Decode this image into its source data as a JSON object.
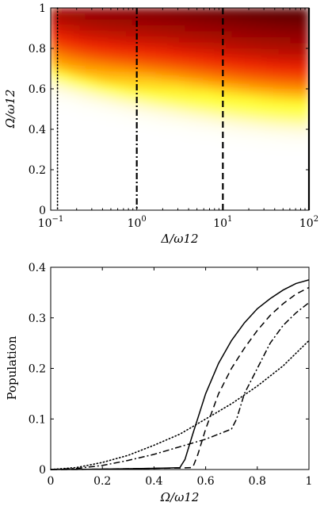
{
  "chart_data": [
    {
      "type": "heatmap",
      "xlabel": "Δ/ω12",
      "ylabel": "Ω/ω12",
      "x_scale": "log",
      "xlim": [
        0.1,
        100
      ],
      "ylim": [
        0,
        1
      ],
      "x_ticks": [
        {
          "value": 0.1,
          "base": "10",
          "exp": "−1"
        },
        {
          "value": 1,
          "base": "10",
          "exp": "0"
        },
        {
          "value": 10,
          "base": "10",
          "exp": "1"
        },
        {
          "value": 100,
          "base": "10",
          "exp": "2"
        }
      ],
      "y_ticks": [
        "0",
        "0.2",
        "0.4",
        "0.6",
        "0.8",
        "1"
      ],
      "colormap": [
        "#ffffff",
        "#fffbd0",
        "#ffff33",
        "#ff9900",
        "#ee2200",
        "#8a0000",
        "#000000"
      ],
      "vertical_markers": [
        {
          "x": 0.12,
          "style": "dotted"
        },
        {
          "x": 1.0,
          "style": "dashdot"
        },
        {
          "x": 10.0,
          "style": "dashed"
        },
        {
          "x": 100.0,
          "style": "solid"
        }
      ]
    },
    {
      "type": "line",
      "xlabel": "Ω/ω12",
      "ylabel": "Population",
      "xlim": [
        0,
        1
      ],
      "ylim": [
        0,
        0.4
      ],
      "x_ticks": [
        "0",
        "0.2",
        "0.4",
        "0.6",
        "0.8",
        "1"
      ],
      "y_ticks": [
        "0",
        "0.1",
        "0.2",
        "0.3",
        "0.4"
      ],
      "series": [
        {
          "style": "solid",
          "x": [
            0,
            0.1,
            0.2,
            0.3,
            0.4,
            0.45,
            0.5,
            0.52,
            0.55,
            0.6,
            0.65,
            0.7,
            0.75,
            0.8,
            0.85,
            0.9,
            0.95,
            1.0
          ],
          "y": [
            0,
            0.0002,
            0.0008,
            0.0016,
            0.0024,
            0.003,
            0.0038,
            0.02,
            0.07,
            0.15,
            0.21,
            0.255,
            0.29,
            0.318,
            0.338,
            0.355,
            0.368,
            0.375
          ]
        },
        {
          "style": "dashed",
          "x": [
            0,
            0.1,
            0.2,
            0.3,
            0.4,
            0.5,
            0.55,
            0.57,
            0.6,
            0.65,
            0.7,
            0.75,
            0.8,
            0.85,
            0.9,
            0.95,
            1.0
          ],
          "y": [
            0,
            0.0002,
            0.0008,
            0.0016,
            0.0024,
            0.003,
            0.004,
            0.03,
            0.08,
            0.15,
            0.2,
            0.24,
            0.275,
            0.305,
            0.328,
            0.347,
            0.36
          ]
        },
        {
          "style": "dashdot",
          "x": [
            0,
            0.1,
            0.2,
            0.3,
            0.4,
            0.5,
            0.6,
            0.7,
            0.72,
            0.75,
            0.8,
            0.85,
            0.9,
            0.95,
            1.0
          ],
          "y": [
            0,
            0.002,
            0.008,
            0.018,
            0.03,
            0.045,
            0.06,
            0.08,
            0.1,
            0.15,
            0.2,
            0.25,
            0.285,
            0.31,
            0.33
          ]
        },
        {
          "style": "dotted",
          "x": [
            0,
            0.1,
            0.2,
            0.3,
            0.4,
            0.5,
            0.6,
            0.7,
            0.8,
            0.9,
            1.0
          ],
          "y": [
            0,
            0.004,
            0.014,
            0.028,
            0.048,
            0.07,
            0.1,
            0.13,
            0.165,
            0.205,
            0.255
          ]
        }
      ]
    }
  ]
}
